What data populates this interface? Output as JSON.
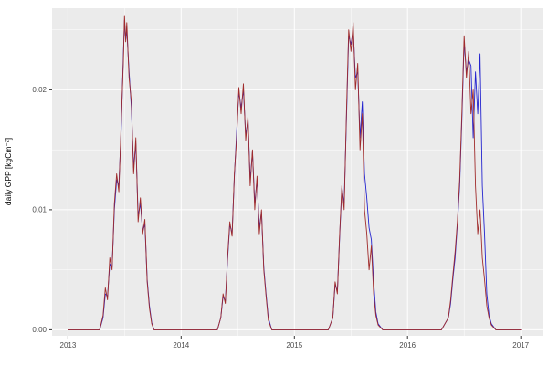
{
  "chart_data": {
    "type": "line",
    "title": "",
    "xlabel": "",
    "ylabel": "daily GPP [kgCm⁻²]",
    "xlim": [
      2012.86,
      2017.2
    ],
    "ylim": [
      -0.0005,
      0.0268
    ],
    "x_ticks": [
      2013,
      2014,
      2015,
      2016,
      2017
    ],
    "x_tick_labels": [
      "2013",
      "2014",
      "2015",
      "2016",
      "2017"
    ],
    "y_ticks": [
      0,
      0.01,
      0.02
    ],
    "y_tick_labels": [
      "0.00",
      "0.01",
      "0.02"
    ],
    "x_minor": [
      2013.5,
      2014.5,
      2015.5,
      2016.5
    ],
    "y_minor": [
      0.005,
      0.015,
      0.025
    ],
    "grid": true,
    "legend": "none",
    "panel_bg": "#EBEBEB",
    "grid_color": "#FFFFFF",
    "tick_label_color": "#4D4D4D",
    "x": [
      2013.0,
      2013.1,
      2013.2,
      2013.28,
      2013.31,
      2013.33,
      2013.35,
      2013.37,
      2013.39,
      2013.41,
      2013.43,
      2013.45,
      2013.47,
      2013.49,
      2013.5,
      2013.51,
      2013.52,
      2013.54,
      2013.56,
      2013.58,
      2013.6,
      2013.62,
      2013.64,
      2013.66,
      2013.68,
      2013.7,
      2013.72,
      2013.74,
      2013.76,
      2013.85,
      2013.95,
      2014.05,
      2014.15,
      2014.25,
      2014.32,
      2014.35,
      2014.37,
      2014.39,
      2014.41,
      2014.43,
      2014.45,
      2014.47,
      2014.49,
      2014.51,
      2014.53,
      2014.55,
      2014.57,
      2014.59,
      2014.61,
      2014.63,
      2014.65,
      2014.67,
      2014.69,
      2014.71,
      2014.73,
      2014.75,
      2014.77,
      2014.8,
      2014.9,
      2015.0,
      2015.1,
      2015.2,
      2015.3,
      2015.34,
      2015.36,
      2015.38,
      2015.4,
      2015.42,
      2015.44,
      2015.46,
      2015.48,
      2015.5,
      2015.52,
      2015.54,
      2015.56,
      2015.58,
      2015.6,
      2015.62,
      2015.64,
      2015.66,
      2015.68,
      2015.7,
      2015.72,
      2015.74,
      2015.78,
      2015.88,
      2016.0,
      2016.1,
      2016.2,
      2016.3,
      2016.36,
      2016.38,
      2016.4,
      2016.42,
      2016.44,
      2016.46,
      2016.48,
      2016.5,
      2016.52,
      2016.54,
      2016.56,
      2016.58,
      2016.6,
      2016.62,
      2016.64,
      2016.66,
      2016.68,
      2016.7,
      2016.72,
      2016.74,
      2016.78,
      2016.88,
      2017.0
    ],
    "series": [
      {
        "name": "blue",
        "color": "#2424CF",
        "values": [
          0,
          0,
          0,
          0,
          0.001,
          0.003,
          0.0028,
          0.0055,
          0.0052,
          0.01,
          0.0125,
          0.012,
          0.0165,
          0.023,
          0.0258,
          0.0242,
          0.025,
          0.0215,
          0.0185,
          0.0135,
          0.0155,
          0.0095,
          0.0105,
          0.0082,
          0.0088,
          0.0042,
          0.002,
          0.0006,
          0,
          0,
          0,
          0,
          0,
          0,
          0,
          0.001,
          0.0028,
          0.0024,
          0.0058,
          0.0088,
          0.008,
          0.0128,
          0.0165,
          0.0198,
          0.0185,
          0.02,
          0.0162,
          0.0175,
          0.0125,
          0.0148,
          0.0105,
          0.0125,
          0.0085,
          0.0098,
          0.0052,
          0.003,
          0.001,
          0,
          0,
          0,
          0,
          0,
          0,
          0.001,
          0.0038,
          0.0032,
          0.0078,
          0.0118,
          0.0105,
          0.0175,
          0.0245,
          0.0238,
          0.025,
          0.021,
          0.0215,
          0.016,
          0.019,
          0.013,
          0.011,
          0.0085,
          0.0075,
          0.004,
          0.0015,
          0.0005,
          0,
          0,
          0,
          0,
          0,
          0,
          0.001,
          0.0022,
          0.0042,
          0.006,
          0.0088,
          0.012,
          0.0175,
          0.024,
          0.0215,
          0.0225,
          0.022,
          0.016,
          0.0215,
          0.018,
          0.023,
          0.012,
          0.008,
          0.003,
          0.0012,
          0.0005,
          0,
          0,
          0
        ]
      },
      {
        "name": "darkred",
        "color": "#A02C2C",
        "values": [
          0,
          0,
          0,
          0,
          0.0012,
          0.0035,
          0.0025,
          0.006,
          0.005,
          0.0105,
          0.013,
          0.0115,
          0.017,
          0.0225,
          0.0262,
          0.024,
          0.0256,
          0.021,
          0.019,
          0.013,
          0.016,
          0.009,
          0.011,
          0.008,
          0.0092,
          0.004,
          0.0018,
          0.0005,
          0,
          0,
          0,
          0,
          0,
          0,
          0,
          0.001,
          0.003,
          0.0022,
          0.006,
          0.009,
          0.0078,
          0.013,
          0.016,
          0.0202,
          0.018,
          0.0205,
          0.0158,
          0.0178,
          0.012,
          0.015,
          0.01,
          0.0128,
          0.008,
          0.01,
          0.005,
          0.0028,
          0.0008,
          0,
          0,
          0,
          0,
          0,
          0,
          0.001,
          0.004,
          0.003,
          0.008,
          0.012,
          0.01,
          0.018,
          0.025,
          0.0232,
          0.0256,
          0.02,
          0.0222,
          0.015,
          0.018,
          0.01,
          0.008,
          0.005,
          0.007,
          0.003,
          0.0012,
          0.0004,
          0,
          0,
          0,
          0,
          0,
          0,
          0.001,
          0.0025,
          0.0045,
          0.0065,
          0.009,
          0.0125,
          0.018,
          0.0245,
          0.021,
          0.0232,
          0.018,
          0.02,
          0.012,
          0.008,
          0.01,
          0.006,
          0.0042,
          0.002,
          0.001,
          0.0004,
          0,
          0,
          0
        ]
      }
    ]
  }
}
